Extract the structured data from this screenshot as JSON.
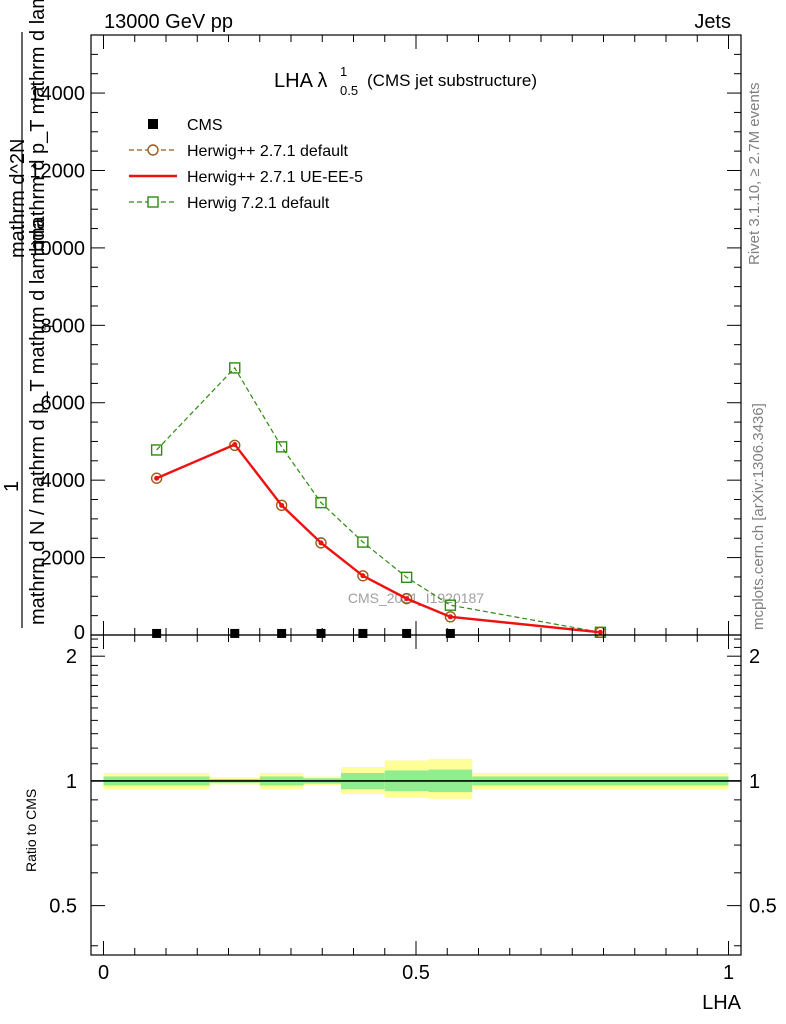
{
  "header": {
    "left": "13000 GeV pp",
    "right": "Jets"
  },
  "plot_title": {
    "main": "LHA λ",
    "sup": "1",
    "sub": "0.5",
    "suffix": "(CMS jet substructure)"
  },
  "side_text": {
    "rivet": "Rivet 3.1.10, ≥ 2.7M events",
    "mcplots": "mcplots.cern.ch [arXiv:1306.3436]"
  },
  "watermark": "CMS_2021_I1920187",
  "y_label_lines": [
    "mathrm d N / mathrm d p_T mathrm d lambda",
    "mathrm d^2N",
    "mathrm d p_T mathrm d lambda"
  ],
  "y_label_one": "1",
  "y_label_sub": "T",
  "x_label": "LHA",
  "ratio_ylabel": "Ratio to CMS",
  "colors": {
    "cms": "#000000",
    "herwigpp_default": "#9a5a1a",
    "herwigpp_ueee5": "#ee1111",
    "herwig721": "#2e8b10",
    "band_outer": "#ffff99",
    "band_inner": "#90ee90"
  },
  "chart_data": {
    "type": "line",
    "xlabel": "LHA",
    "xlim": [
      -0.02,
      1.02
    ],
    "main": {
      "ylim": [
        0,
        15500
      ],
      "yticks": [
        2000,
        4000,
        6000,
        8000,
        10000,
        12000,
        14000
      ],
      "ytick_labels": [
        "2000",
        "4000",
        "6000",
        "8000",
        "10000",
        "12000",
        "14000"
      ],
      "legend_position": "top-left",
      "series": [
        {
          "name": "CMS",
          "style": "black-squares",
          "x": [
            0.085,
            0.21,
            0.285,
            0.348,
            0.415,
            0.485,
            0.555
          ],
          "y": [
            40,
            40,
            40,
            40,
            40,
            40,
            40
          ]
        },
        {
          "name": "Herwig++ 2.7.1 default",
          "style": "brown-dashed-circles",
          "x": [
            0.085,
            0.21,
            0.285,
            0.348,
            0.415,
            0.485,
            0.555,
            0.795
          ],
          "y": [
            4050,
            4900,
            3350,
            2380,
            1530,
            940,
            470,
            70
          ]
        },
        {
          "name": "Herwig++ 2.7.1 UE-EE-5",
          "style": "red-solid",
          "x": [
            0.085,
            0.21,
            0.285,
            0.348,
            0.415,
            0.485,
            0.555,
            0.795
          ],
          "y": [
            4050,
            4920,
            3350,
            2380,
            1530,
            940,
            470,
            70
          ]
        },
        {
          "name": "Herwig 7.2.1 default",
          "style": "green-dashed-squares",
          "x": [
            0.085,
            0.21,
            0.285,
            0.348,
            0.415,
            0.485,
            0.555,
            0.795
          ],
          "y": [
            4780,
            6900,
            4860,
            3420,
            2400,
            1490,
            770,
            70
          ]
        }
      ]
    },
    "ratio": {
      "ylabel": "Ratio to CMS",
      "ylim": [
        0.38,
        2.25
      ],
      "yscale": "log",
      "yticks": [
        0.5,
        1,
        2
      ],
      "ytick_labels": [
        "0.5",
        "1",
        "2"
      ],
      "xticks": [
        0,
        0.5,
        1
      ],
      "xtick_labels": [
        "0",
        "0.5",
        "1"
      ],
      "bins": [
        0,
        0.17,
        0.25,
        0.32,
        0.38,
        0.45,
        0.52,
        0.59,
        1.0
      ],
      "band_outer": [
        [
          0.955,
          1.045
        ],
        [
          0.98,
          1.02
        ],
        [
          0.955,
          1.045
        ],
        [
          0.975,
          1.025
        ],
        [
          0.93,
          1.08
        ],
        [
          0.91,
          1.12
        ],
        [
          0.905,
          1.13
        ],
        [
          0.955,
          1.045
        ]
      ],
      "band_inner": [
        [
          0.975,
          1.025
        ],
        [
          0.99,
          1.01
        ],
        [
          0.975,
          1.025
        ],
        [
          0.985,
          1.015
        ],
        [
          0.955,
          1.045
        ],
        [
          0.945,
          1.06
        ],
        [
          0.94,
          1.065
        ],
        [
          0.975,
          1.025
        ]
      ]
    }
  }
}
